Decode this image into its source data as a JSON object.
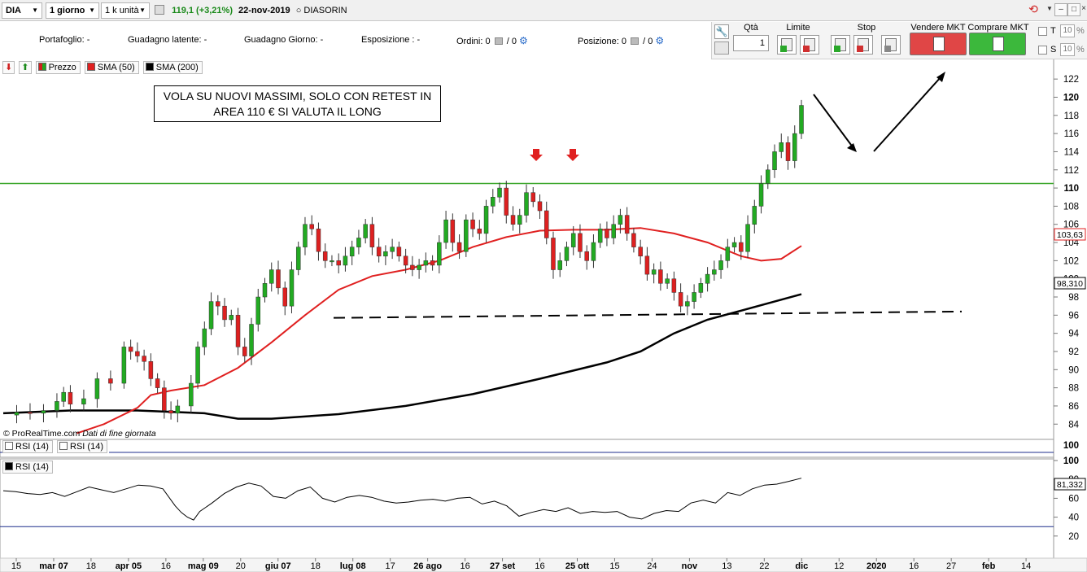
{
  "toolbar": {
    "symbol": "DIA",
    "timeframe": "1 giorno",
    "quantity": "1 k unità",
    "price_change": "119,1 (+3,21%)",
    "date": "22-nov-2019",
    "instrument": "DIASORIN"
  },
  "info_panel": {
    "portafoglio": "Portafoglio: -",
    "guadagno_latente": "Guadagno latente: -",
    "guadagno_giorno": "Guadagno Giorno: -",
    "esposizione": "Esposizione : -",
    "ordini_label": "Ordini:",
    "ordini_a": "0",
    "ordini_b": "/ 0",
    "posizione_label": "Posizione:",
    "posizione_a": "0",
    "posizione_b": "/ 0"
  },
  "order_panel": {
    "qta_label": "Qtà",
    "qta_value": "1",
    "limite_label": "Limite",
    "stop_label": "Stop",
    "sell_label": "Vendere MKT",
    "buy_label": "Comprare MKT",
    "t_label": "T",
    "s_label": "S",
    "t_pct": "10",
    "s_pct": "10",
    "pct_sign": "%",
    "colors": {
      "sell": "#e04646",
      "buy": "#3cb83c"
    }
  },
  "chart_legend": {
    "price": "Prezzo",
    "sma50": "SMA (50)",
    "sma200": "SMA (200)",
    "rsi_a": "RSI (14)",
    "rsi_b": "RSI (14)",
    "rsi_main": "RSI (14)"
  },
  "annotation": {
    "line1": "VOLA SU NUOVI MASSIMI, SOLO CON RETEST IN",
    "line2": "AREA 110 € SI VALUTA IL LONG"
  },
  "copyright": {
    "brand": "© ProRealTime.com",
    "note": "Dati di fine giornata"
  },
  "chart_data": {
    "type": "candlestick",
    "instrument": "DIASORIN",
    "y_range": [
      82.5,
      123
    ],
    "y_ticks": [
      84,
      86,
      88,
      90,
      92,
      94,
      96,
      98,
      100,
      102,
      104,
      106,
      108,
      110,
      112,
      114,
      116,
      118,
      120,
      122
    ],
    "last_price_labels": {
      "price": "119,1",
      "sma50": "103,63",
      "sma200": "98,310",
      "rsi": "81,332"
    },
    "x_labels": [
      "15",
      "mar 07",
      "18",
      "apr 05",
      "16",
      "mag 09",
      "20",
      "giu 07",
      "18",
      "lug 08",
      "17",
      "26 ago",
      "16",
      "27 set",
      "16",
      "25 ott",
      "15",
      "24",
      "nov",
      "13",
      "22",
      "dic",
      "12",
      "2020",
      "16",
      "27",
      "feb",
      "14"
    ],
    "horizontal_level": 110.5,
    "support_line": {
      "from": 95.7,
      "to": 96.4
    },
    "price_path": [
      [
        0,
        85.0
      ],
      [
        2,
        85.3
      ],
      [
        4,
        85.2
      ],
      [
        6,
        85.5
      ],
      [
        8,
        86.5
      ],
      [
        9,
        87.5
      ],
      [
        10,
        86.2
      ],
      [
        12,
        86.8
      ],
      [
        14,
        89.0
      ],
      [
        16,
        88.5
      ],
      [
        18,
        92.5
      ],
      [
        19,
        92.0
      ],
      [
        20,
        91.5
      ],
      [
        21,
        90.9
      ],
      [
        22,
        89.0
      ],
      [
        23,
        88.0
      ],
      [
        24,
        85.5
      ],
      [
        25,
        85.2
      ],
      [
        26,
        86.0
      ],
      [
        28,
        88.5
      ],
      [
        29,
        92.5
      ],
      [
        30,
        94.5
      ],
      [
        31,
        97.5
      ],
      [
        32,
        97.0
      ],
      [
        33,
        95.5
      ],
      [
        34,
        96.0
      ],
      [
        35,
        92.5
      ],
      [
        36,
        91.5
      ],
      [
        37,
        95.0
      ],
      [
        38,
        98.0
      ],
      [
        39,
        99.5
      ],
      [
        40,
        101.0
      ],
      [
        41,
        99.0
      ],
      [
        42,
        97.0
      ],
      [
        43,
        101.0
      ],
      [
        44,
        103.5
      ],
      [
        45,
        106.0
      ],
      [
        46,
        105.5
      ],
      [
        47,
        103.0
      ],
      [
        48,
        102.0
      ],
      [
        49,
        102.0
      ],
      [
        50,
        101.5
      ],
      [
        51,
        102.5
      ],
      [
        52,
        103.5
      ],
      [
        53,
        104.5
      ],
      [
        54,
        106.0
      ],
      [
        55,
        103.5
      ],
      [
        56,
        102.5
      ],
      [
        57,
        103.0
      ],
      [
        58,
        103.5
      ],
      [
        59,
        102.5
      ],
      [
        60,
        101.5
      ],
      [
        61,
        101.0
      ],
      [
        62,
        101.5
      ],
      [
        63,
        102.0
      ],
      [
        64,
        101.5
      ],
      [
        65,
        104.0
      ],
      [
        66,
        106.5
      ],
      [
        67,
        104.0
      ],
      [
        68,
        103.0
      ],
      [
        69,
        106.5
      ],
      [
        70,
        105.5
      ],
      [
        71,
        105.0
      ],
      [
        72,
        108.0
      ],
      [
        73,
        109.0
      ],
      [
        74,
        110.0
      ],
      [
        75,
        107.0
      ],
      [
        76,
        106.0
      ],
      [
        77,
        107.0
      ],
      [
        78,
        109.5
      ],
      [
        79,
        108.5
      ],
      [
        80,
        107.5
      ],
      [
        81,
        104.5
      ],
      [
        82,
        101.0
      ],
      [
        83,
        102.0
      ],
      [
        84,
        103.5
      ],
      [
        85,
        105.0
      ],
      [
        86,
        103.0
      ],
      [
        87,
        102.0
      ],
      [
        88,
        104.0
      ],
      [
        89,
        105.5
      ],
      [
        90,
        104.5
      ],
      [
        91,
        106.0
      ],
      [
        92,
        107.0
      ],
      [
        93,
        105.0
      ],
      [
        94,
        103.5
      ],
      [
        95,
        102.5
      ],
      [
        96,
        100.5
      ],
      [
        97,
        101.0
      ],
      [
        98,
        99.5
      ],
      [
        99,
        100.0
      ],
      [
        100,
        98.5
      ],
      [
        101,
        97.0
      ],
      [
        102,
        97.5
      ],
      [
        103,
        98.5
      ],
      [
        104,
        99.5
      ],
      [
        105,
        100.5
      ],
      [
        106,
        101.0
      ],
      [
        107,
        102.0
      ],
      [
        108,
        103.5
      ],
      [
        109,
        104.0
      ],
      [
        110,
        103.0
      ],
      [
        111,
        106.0
      ],
      [
        112,
        108.0
      ],
      [
        113,
        110.5
      ],
      [
        114,
        112.0
      ],
      [
        115,
        114.0
      ],
      [
        116,
        115.0
      ],
      [
        117,
        113.0
      ],
      [
        118,
        116.0
      ],
      [
        119,
        119.1
      ]
    ],
    "sma50_path": [
      [
        11,
        83.0
      ],
      [
        15,
        84.0
      ],
      [
        20,
        85.8
      ],
      [
        22,
        87.2
      ],
      [
        25,
        87.7
      ],
      [
        30,
        88.3
      ],
      [
        35,
        90.2
      ],
      [
        40,
        93.0
      ],
      [
        45,
        96.0
      ],
      [
        50,
        98.8
      ],
      [
        55,
        100.3
      ],
      [
        60,
        101.0
      ],
      [
        65,
        102.0
      ],
      [
        70,
        103.5
      ],
      [
        75,
        104.6
      ],
      [
        80,
        105.3
      ],
      [
        85,
        105.4
      ],
      [
        90,
        105.4
      ],
      [
        95,
        105.6
      ],
      [
        100,
        105.0
      ],
      [
        105,
        104.0
      ],
      [
        110,
        102.5
      ],
      [
        113,
        102.0
      ],
      [
        116,
        102.2
      ],
      [
        119,
        103.63
      ]
    ],
    "sma200_path": [
      [
        0,
        85.2
      ],
      [
        10,
        85.5
      ],
      [
        20,
        85.5
      ],
      [
        30,
        85.2
      ],
      [
        35,
        84.6
      ],
      [
        40,
        84.6
      ],
      [
        50,
        85.1
      ],
      [
        60,
        86.0
      ],
      [
        70,
        87.3
      ],
      [
        80,
        89.0
      ],
      [
        90,
        90.8
      ],
      [
        95,
        92.0
      ],
      [
        100,
        94.0
      ],
      [
        105,
        95.5
      ],
      [
        110,
        96.5
      ],
      [
        115,
        97.5
      ],
      [
        119,
        98.31
      ]
    ],
    "rsi_range": [
      0,
      100
    ],
    "rsi_ticks": [
      20,
      40,
      60,
      80,
      100
    ],
    "rsi_level": 30,
    "rsi_path": [
      [
        0,
        68
      ],
      [
        2,
        67
      ],
      [
        4,
        65
      ],
      [
        6,
        64
      ],
      [
        8,
        66
      ],
      [
        10,
        62
      ],
      [
        12,
        67
      ],
      [
        14,
        72
      ],
      [
        16,
        69
      ],
      [
        18,
        66
      ],
      [
        20,
        70
      ],
      [
        22,
        74
      ],
      [
        24,
        73
      ],
      [
        26,
        70
      ],
      [
        28,
        52
      ],
      [
        29,
        45
      ],
      [
        30,
        40
      ],
      [
        31,
        37
      ],
      [
        32,
        46
      ],
      [
        34,
        55
      ],
      [
        36,
        65
      ],
      [
        38,
        72
      ],
      [
        40,
        76
      ],
      [
        42,
        73
      ],
      [
        44,
        62
      ],
      [
        46,
        60
      ],
      [
        48,
        68
      ],
      [
        50,
        72
      ],
      [
        52,
        60
      ],
      [
        54,
        56
      ],
      [
        56,
        61
      ],
      [
        58,
        63
      ],
      [
        60,
        61
      ],
      [
        62,
        57
      ],
      [
        64,
        55
      ],
      [
        66,
        56
      ],
      [
        68,
        58
      ],
      [
        70,
        59
      ],
      [
        72,
        57
      ],
      [
        74,
        60
      ],
      [
        76,
        61
      ],
      [
        78,
        54
      ],
      [
        80,
        57
      ],
      [
        82,
        52
      ],
      [
        84,
        41
      ],
      [
        86,
        45
      ],
      [
        88,
        48
      ],
      [
        90,
        46
      ],
      [
        92,
        50
      ],
      [
        94,
        44
      ],
      [
        96,
        46
      ],
      [
        98,
        45
      ],
      [
        100,
        46
      ],
      [
        102,
        40
      ],
      [
        104,
        38
      ],
      [
        106,
        44
      ],
      [
        108,
        47
      ],
      [
        110,
        46
      ],
      [
        112,
        55
      ],
      [
        114,
        58
      ],
      [
        116,
        55
      ],
      [
        118,
        66
      ],
      [
        120,
        63
      ],
      [
        122,
        70
      ],
      [
        124,
        74
      ],
      [
        126,
        75
      ],
      [
        128,
        78
      ],
      [
        130,
        81.332
      ]
    ]
  }
}
